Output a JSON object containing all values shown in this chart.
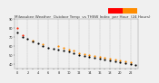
{
  "title": "Milwaukee Weather  Outdoor Temp  vs THSW Index  per Hour  (24 Hours)",
  "background_color": "#f0f0f0",
  "plot_bg_color": "#f0f0f0",
  "grid_color": "#b0b0b0",
  "temp_color": "#000000",
  "thsw_color_warm": "#ff8c00",
  "thsw_color_hot": "#ff2000",
  "legend_red": "#ff0000",
  "legend_orange": "#ff8c00",
  "hours": [
    0,
    1,
    2,
    3,
    4,
    5,
    6,
    7,
    8,
    9,
    10,
    11,
    12,
    13,
    14,
    15,
    16,
    17,
    18,
    19,
    20,
    21,
    22,
    23
  ],
  "temp_values": [
    75,
    70,
    68,
    65,
    63,
    60,
    58,
    57,
    56,
    55,
    54,
    52,
    50,
    49,
    48,
    47,
    46,
    45,
    44,
    43,
    42,
    41,
    40,
    39
  ],
  "thsw_values": [
    80,
    72,
    null,
    66,
    null,
    62,
    null,
    null,
    60,
    58,
    56,
    55,
    52,
    51,
    50,
    49,
    48,
    47,
    46,
    45,
    44,
    43,
    42,
    null
  ],
  "thsw_hot": [
    null,
    null,
    null,
    null,
    null,
    null,
    null,
    null,
    null,
    null,
    null,
    null,
    null,
    null,
    null,
    null,
    null,
    null,
    null,
    null,
    null,
    null,
    null,
    null
  ],
  "ylim": [
    35,
    90
  ],
  "xlim": [
    -0.5,
    23.5
  ],
  "xtick_step": 2,
  "yticks": [
    40,
    50,
    60,
    70,
    80,
    90
  ],
  "title_fontsize": 3.0,
  "tick_fontsize": 2.5,
  "marker_size": 2.5,
  "linewidth": 0.3
}
